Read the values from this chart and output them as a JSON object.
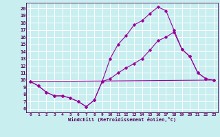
{
  "xlabel": "Windchill (Refroidissement éolien,°C)",
  "background_color": "#c8eef0",
  "grid_color": "#ffffff",
  "line_color": "#990099",
  "xlim": [
    -0.5,
    23.5
  ],
  "ylim": [
    5.5,
    20.8
  ],
  "yticks": [
    6,
    7,
    8,
    9,
    10,
    11,
    12,
    13,
    14,
    15,
    16,
    17,
    18,
    19,
    20
  ],
  "xticks": [
    0,
    1,
    2,
    3,
    4,
    5,
    6,
    7,
    8,
    9,
    10,
    11,
    12,
    13,
    14,
    15,
    16,
    17,
    18,
    19,
    20,
    21,
    22,
    23
  ],
  "series1_x": [
    0,
    1,
    2,
    3,
    4,
    5,
    6,
    7,
    8,
    9,
    10,
    11,
    12,
    13,
    14,
    15,
    16,
    17,
    18,
    19,
    20,
    21,
    22,
    23
  ],
  "series1_y": [
    9.8,
    9.2,
    8.3,
    7.8,
    7.8,
    7.5,
    7.0,
    6.3,
    7.2,
    9.8,
    13.0,
    15.0,
    16.2,
    17.7,
    18.3,
    19.3,
    20.2,
    19.7,
    17.0,
    14.3,
    13.3,
    11.0,
    10.2,
    10.0
  ],
  "series2_x": [
    0,
    1,
    2,
    3,
    4,
    5,
    6,
    7,
    8,
    9,
    10,
    11,
    12,
    13,
    14,
    15,
    16,
    17,
    18,
    19,
    20,
    21,
    22,
    23
  ],
  "series2_y": [
    9.8,
    9.2,
    8.3,
    7.8,
    7.8,
    7.5,
    7.0,
    6.3,
    7.2,
    9.8,
    10.2,
    11.0,
    11.7,
    12.3,
    13.0,
    14.2,
    15.5,
    16.0,
    16.7,
    14.3,
    13.3,
    11.0,
    10.2,
    10.0
  ],
  "series3_x": [
    0,
    23
  ],
  "series3_y": [
    9.8,
    10.0
  ]
}
